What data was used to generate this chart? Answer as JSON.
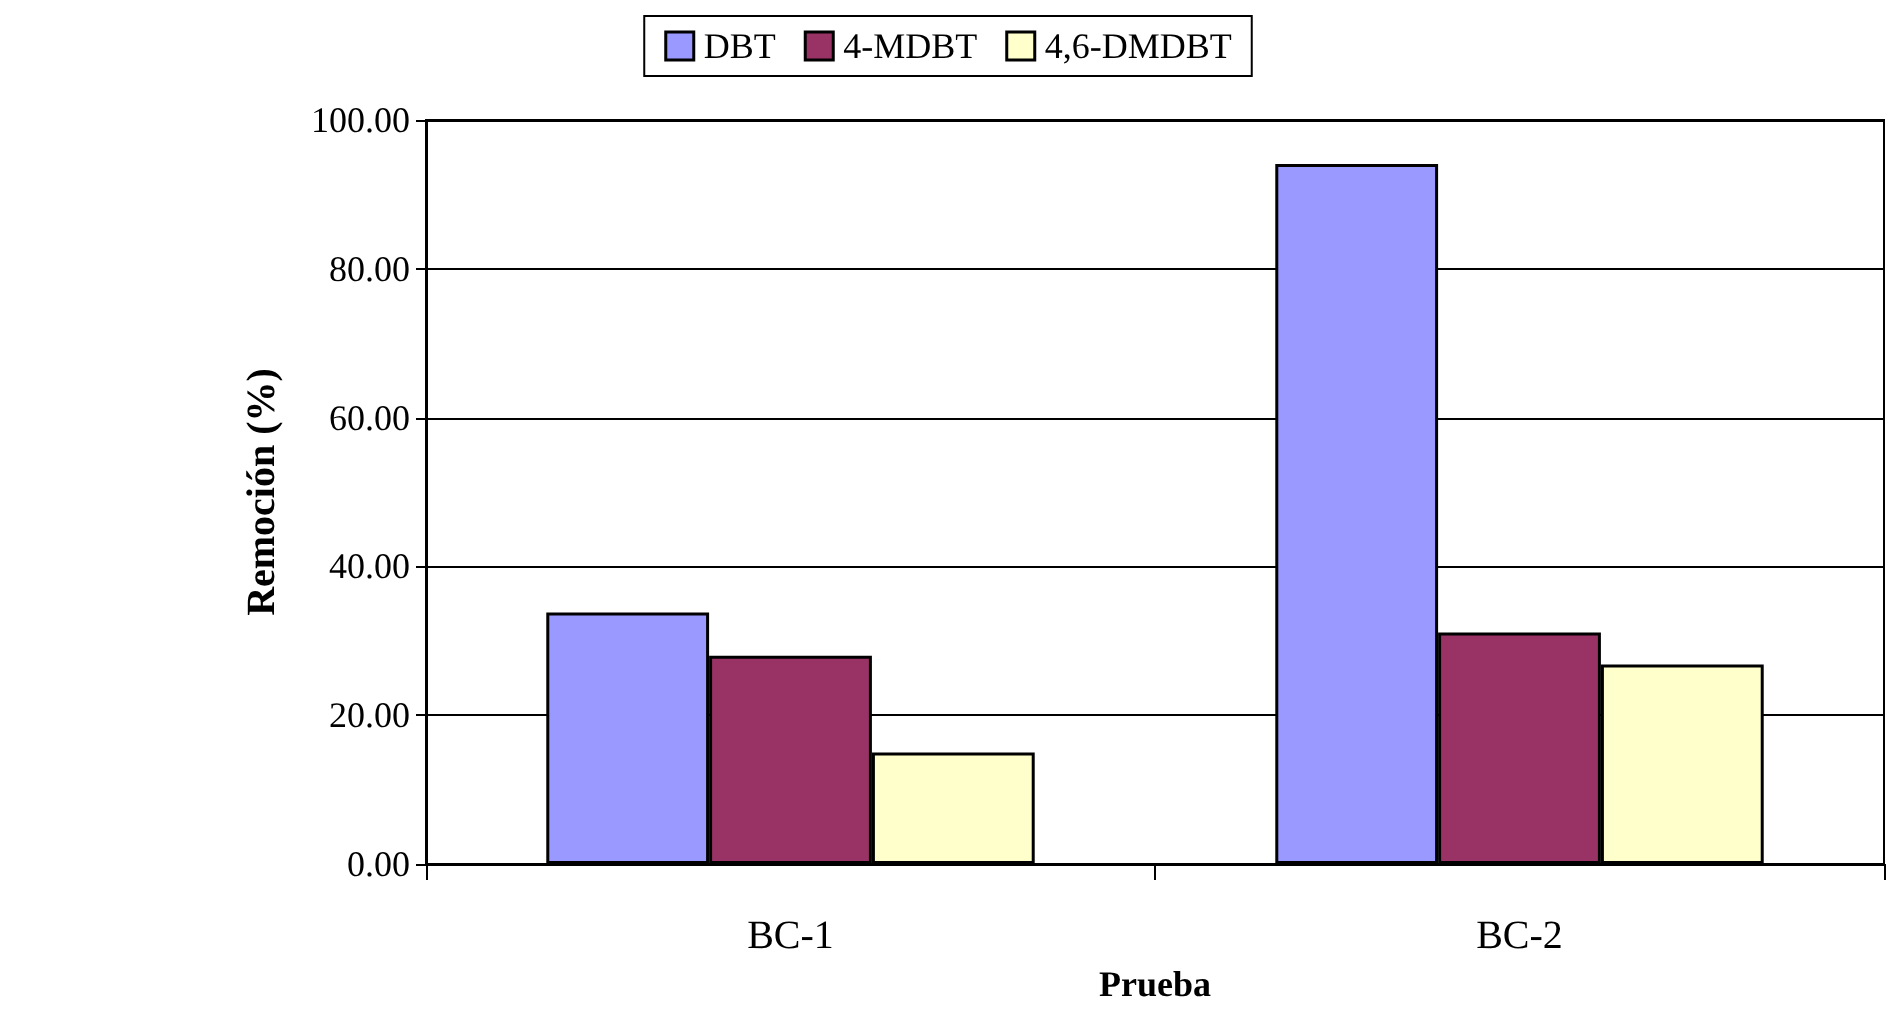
{
  "chart_data": {
    "type": "bar",
    "xlabel": "Prueba",
    "ylabel": "Remoción (%)",
    "categories": [
      "BC-1",
      "BC-2"
    ],
    "series": [
      {
        "name": "DBT",
        "color": "#9999ff",
        "values": [
          33.8,
          94.1
        ]
      },
      {
        "name": "4-MDBT",
        "color": "#993366",
        "values": [
          28.0,
          31.1
        ]
      },
      {
        "name": "4,6-DMDBT",
        "color": "#ffffcc",
        "values": [
          15.0,
          26.8
        ]
      }
    ],
    "ylim": [
      0,
      100
    ],
    "yticks": [
      {
        "value": 0,
        "label": "0.00"
      },
      {
        "value": 20,
        "label": "20.00"
      },
      {
        "value": 40,
        "label": "40.00"
      },
      {
        "value": 60,
        "label": "60.00"
      },
      {
        "value": 80,
        "label": "80.00"
      },
      {
        "value": 100,
        "label": "100.00"
      }
    ],
    "grid": "y",
    "legend": "top"
  }
}
